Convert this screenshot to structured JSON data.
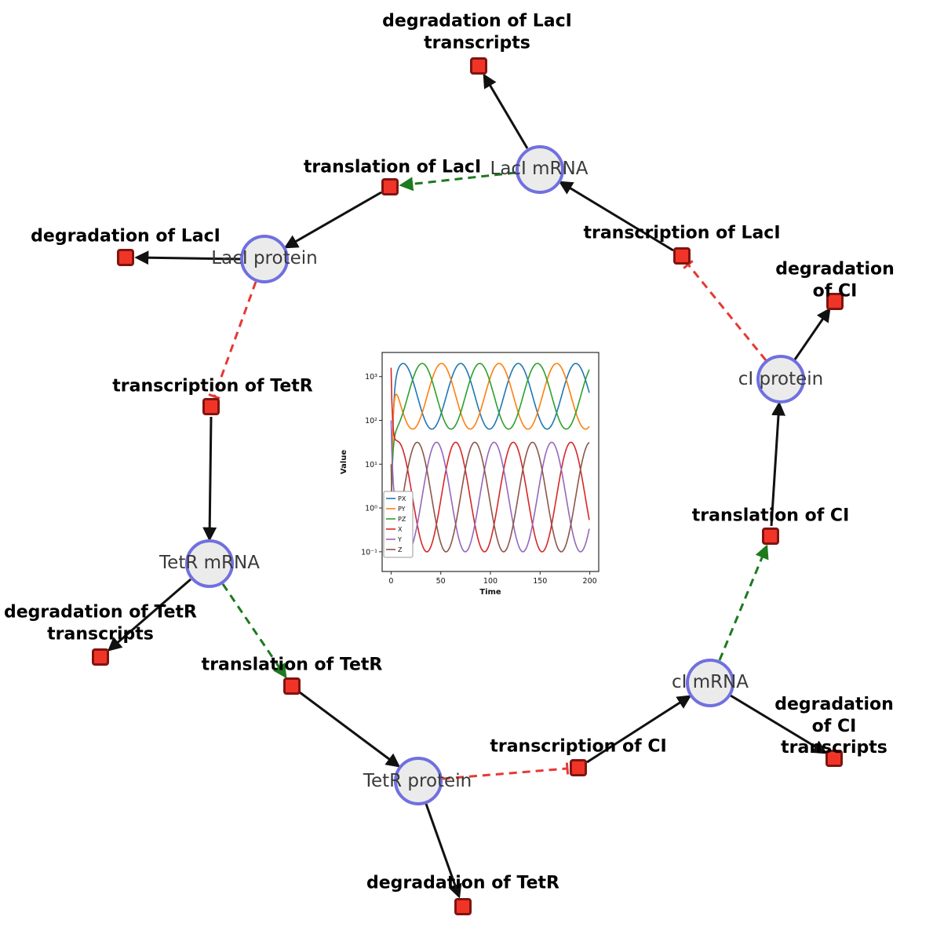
{
  "diagram": {
    "species": [
      {
        "id": "laci_mrna",
        "label": "LacI mRNA"
      },
      {
        "id": "laci_protein",
        "label": "LacI protein"
      },
      {
        "id": "tetr_mrna",
        "label": "TetR mRNA"
      },
      {
        "id": "tetr_protein",
        "label": "TetR protein"
      },
      {
        "id": "ci_mrna",
        "label": "cI mRNA"
      },
      {
        "id": "ci_protein",
        "label": "cI protein"
      }
    ],
    "reactions": [
      {
        "id": "deg_laci_tx",
        "label": "degradation of LacI\ntranscripts"
      },
      {
        "id": "transl_laci",
        "label": "translation of LacI"
      },
      {
        "id": "deg_laci",
        "label": "degradation of LacI"
      },
      {
        "id": "txn_laci",
        "label": "transcription of LacI"
      },
      {
        "id": "deg_ci",
        "label": "degradation of CI"
      },
      {
        "id": "txn_tetr",
        "label": "transcription of TetR"
      },
      {
        "id": "transl_ci",
        "label": "translation of CI"
      },
      {
        "id": "deg_tetr_tx",
        "label": "degradation of TetR\ntranscripts"
      },
      {
        "id": "transl_tetr",
        "label": "translation of TetR"
      },
      {
        "id": "deg_ci_tx",
        "label": "degradation of CI\ntranscripts"
      },
      {
        "id": "txn_ci",
        "label": "transcription of CI"
      },
      {
        "id": "deg_tetr",
        "label": "degradation of TetR"
      }
    ],
    "edge_colors": {
      "reaction": "#111111",
      "modifier": "#1d7a1d",
      "inhibition": "#e53935"
    }
  },
  "chart_data": {
    "type": "line",
    "title": "",
    "xlabel": "Time",
    "ylabel": "Value",
    "x_ticks": [
      0,
      50,
      100,
      150,
      200
    ],
    "x_tick_labels": [
      "0",
      "50",
      "100",
      "150",
      "200"
    ],
    "y_scale": "log",
    "y_tick_exponents": [
      -1,
      0,
      1,
      2,
      3
    ],
    "y_tick_labels": [
      "10⁻¹",
      "10⁰",
      "10¹",
      "10²",
      "10³"
    ],
    "xlim": [
      -9,
      209
    ],
    "ylim_log": [
      -1.45,
      3.55
    ],
    "legend_position": "lower left",
    "grid": false,
    "series": [
      {
        "name": "PX",
        "color": "#1f77b4",
        "band": "protein",
        "log_center": 2.55,
        "log_amplitude": 0.75,
        "period": 58,
        "phase": 55.5,
        "initial_log": -1.0
      },
      {
        "name": "PY",
        "color": "#ff7f0e",
        "band": "protein",
        "log_center": 2.55,
        "log_amplitude": 0.75,
        "period": 58,
        "phase": 36.2,
        "initial_log": -0.6
      },
      {
        "name": "PZ",
        "color": "#2ca02c",
        "band": "protein",
        "log_center": 2.55,
        "log_amplitude": 0.75,
        "period": 58,
        "phase": 16.8,
        "initial_log": -0.2
      },
      {
        "name": "X",
        "color": "#d62728",
        "band": "mrna",
        "log_center": 0.25,
        "log_amplitude": 1.25,
        "period": 58,
        "phase": 50.5,
        "initial_log": 3.2
      },
      {
        "name": "Y",
        "color": "#9467bd",
        "band": "mrna",
        "log_center": 0.25,
        "log_amplitude": 1.25,
        "period": 58,
        "phase": 31.2,
        "initial_log": 2.0
      },
      {
        "name": "Z",
        "color": "#8c564b",
        "band": "mrna",
        "log_center": 0.25,
        "log_amplitude": 1.25,
        "period": 58,
        "phase": 11.8,
        "initial_log": 1.0
      }
    ]
  }
}
